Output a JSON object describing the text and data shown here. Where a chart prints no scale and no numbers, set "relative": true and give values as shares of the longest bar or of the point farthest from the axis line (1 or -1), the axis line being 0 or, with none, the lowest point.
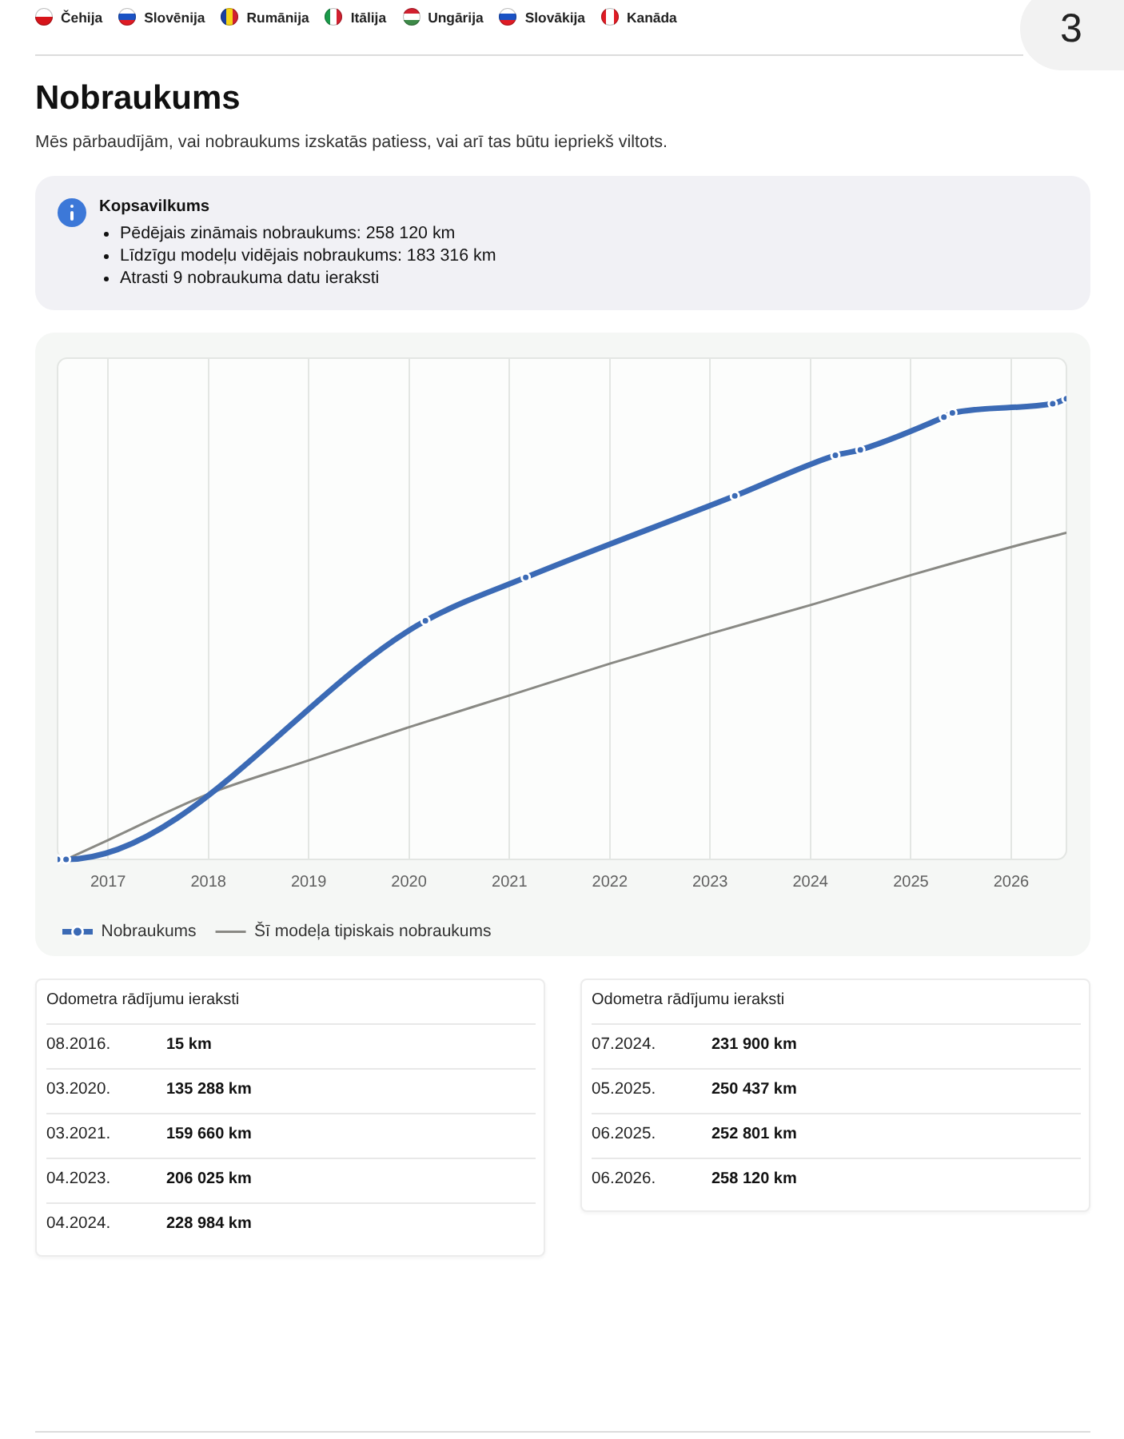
{
  "chart_data": [
    {
      "type": "line",
      "title": "Nobraukums",
      "subtitle": "Mēs pārbaudījām, vai nobraukums izskatās patiess, vai arī tas būtu iepriekš viltots.",
      "relative": true,
      "series": [
        {
          "name": "Nobraukums",
          "color": "#3b6ab5",
          "marker": "circle",
          "x": [
            "2016-07-01",
            "2016-08",
            "2020-03",
            "2021-03",
            "2023-04",
            "2024-04",
            "2024-07",
            "2025-05",
            "2025-06",
            "2026-06",
            "2026-07-21"
          ],
          "values": [
            0,
            0,
            0.518,
            0.612,
            0.789,
            0.877,
            0.889,
            0.96,
            0.969,
            0.989,
            1
          ]
        },
        {
          "name": "Šī modeļa tipiskais nobraukums",
          "color": "#898984",
          "marker": "none",
          "x": [
            "2016-08",
            "2017",
            "2018",
            "2019",
            "2020",
            "2021",
            "2022",
            "2023",
            "2024",
            "2025",
            "2026",
            "2026-07-21"
          ],
          "values": [
            0,
            0.042,
            0.142,
            0.215,
            0.287,
            0.356,
            0.425,
            0.49,
            0.552,
            0.617,
            0.678,
            0.709
          ]
        }
      ],
      "xlim": [
        "2016-07-01",
        "2026-07-21"
      ],
      "xticks": [
        "2017",
        "2018",
        "2019",
        "2020",
        "2021",
        "2022",
        "2023",
        "2024",
        "2025",
        "2026"
      ],
      "grid": "x",
      "legend": "bottom left",
      "tick_labels": "x",
      "annotations": [
        "Čehija",
        "Slovēnija",
        "Rumānija",
        "Itālija",
        "Ungārija",
        "Slovākija",
        "Kanāda",
        "3",
        "Kopsavilkums",
        "Pēdējais zināmais nobraukums: 258 120 km",
        "Līdzīgu modeļu vidējais nobraukums: 183 316 km",
        "Atrasti 9 nobraukuma datu ieraksti"
      ]
    },
    {
      "type": "other",
      "title": "Odometra rādījumu ieraksti",
      "annotations": [
        "08.2016.",
        "15 km",
        "03.2020.",
        "135 288 km",
        "03.2021.",
        "159 660 km",
        "04.2023.",
        "206 025 km",
        "04.2024.",
        "228 984 km"
      ]
    },
    {
      "type": "other",
      "title": "Odometra rādījumu ieraksti",
      "annotations": [
        "07.2024.",
        "231 900 km",
        "05.2025.",
        "250 437 km",
        "06.2025.",
        "252 801 km",
        "06.2026.",
        "258 120 km"
      ]
    }
  ]
}
